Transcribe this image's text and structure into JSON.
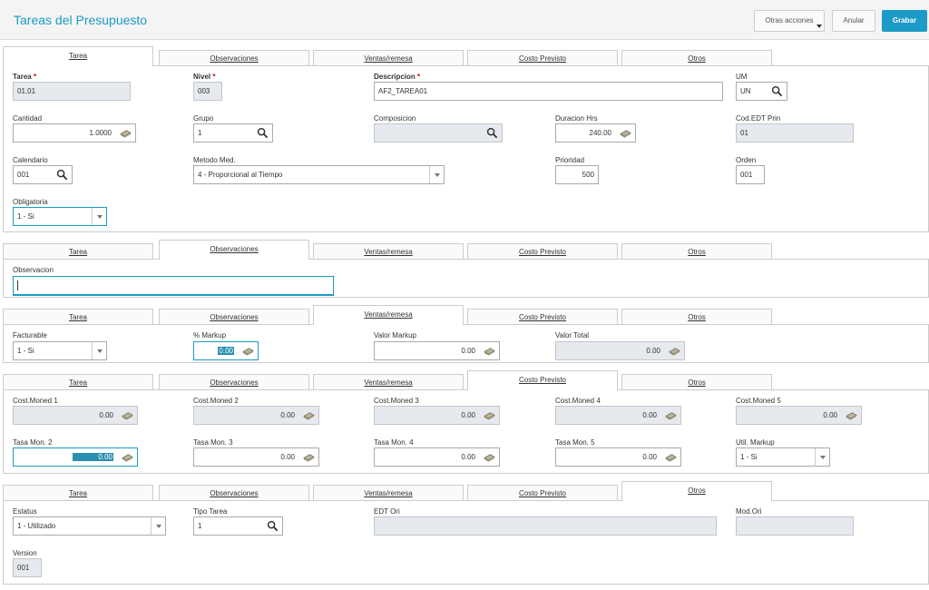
{
  "header": {
    "title": "Tareas del Presupuesto",
    "otras": "Otras acciones",
    "anular": "Anular",
    "grabar": "Grabar"
  },
  "tabs": {
    "tarea": "Tarea",
    "observaciones": "Observaciones",
    "ventas": "Ventas/remesa",
    "costo": "Costo Previsto",
    "otros": "Otros"
  },
  "tarea": {
    "tarea_label": "Tarea",
    "tarea_value": "01.01",
    "nivel_label": "Nivel",
    "nivel_value": "003",
    "descripcion_label": "Descripcion",
    "descripcion_value": "AF2_TAREA01",
    "um_label": "UM",
    "um_value": "UN",
    "cantidad_label": "Cantidad",
    "cantidad_value": "1.0000",
    "grupo_label": "Grupo",
    "grupo_value": "1",
    "composicion_label": "Composicion",
    "composicion_value": "",
    "duracion_label": "Duracion Hrs",
    "duracion_value": "240.00",
    "codedt_label": "Cod.EDT Prin",
    "codedt_value": "01",
    "calendario_label": "Calendario",
    "calendario_value": "001",
    "metodo_label": "Metodo Med.",
    "metodo_value": "4 - Proporcional al Tiempo",
    "prioridad_label": "Prioridad",
    "prioridad_value": "500",
    "orden_label": "Orden",
    "orden_value": "001",
    "obligatoria_label": "Obligatoria",
    "obligatoria_value": "1 - Si",
    "required_mark": "*"
  },
  "observaciones": {
    "observacion_label": "Observacion",
    "observacion_value": ""
  },
  "ventas": {
    "facturable_label": "Facturable",
    "facturable_value": "1 - Si",
    "markup_label": "% Markup",
    "markup_value": "0.00",
    "valor_markup_label": "Valor Markup",
    "valor_markup_value": "0.00",
    "valor_total_label": "Valor Total",
    "valor_total_value": "0.00"
  },
  "costo": {
    "cm1_label": "Cost.Moned 1",
    "cm1_value": "0.00",
    "cm2_label": "Cost.Moned 2",
    "cm2_value": "0.00",
    "cm3_label": "Cost.Moned 3",
    "cm3_value": "0.00",
    "cm4_label": "Cost.Moned 4",
    "cm4_value": "0.00",
    "cm5_label": "Cost.Moned 5",
    "cm5_value": "0.00",
    "tm2_label": "Tasa Mon. 2",
    "tm2_value": "0.00",
    "tm3_label": "Tasa Mon. 3",
    "tm3_value": "0.00",
    "tm4_label": "Tasa Mon. 4",
    "tm4_value": "0.00",
    "tm5_label": "Tasa Mon. 5",
    "tm5_value": "0.00",
    "util_label": "Util. Markup",
    "util_value": "1 - Si"
  },
  "otros": {
    "estatus_label": "Estatus",
    "estatus_value": "1 - Utilizado",
    "tipo_label": "Tipo Tarea",
    "tipo_value": "1",
    "edt_label": "EDT Ori",
    "edt_value": "",
    "mod_label": "Mod.Ori",
    "mod_value": "",
    "version_label": "Version",
    "version_value": "001"
  },
  "colors": {
    "accent": "#1b9bc5",
    "readonly": "#e6e9ee"
  }
}
